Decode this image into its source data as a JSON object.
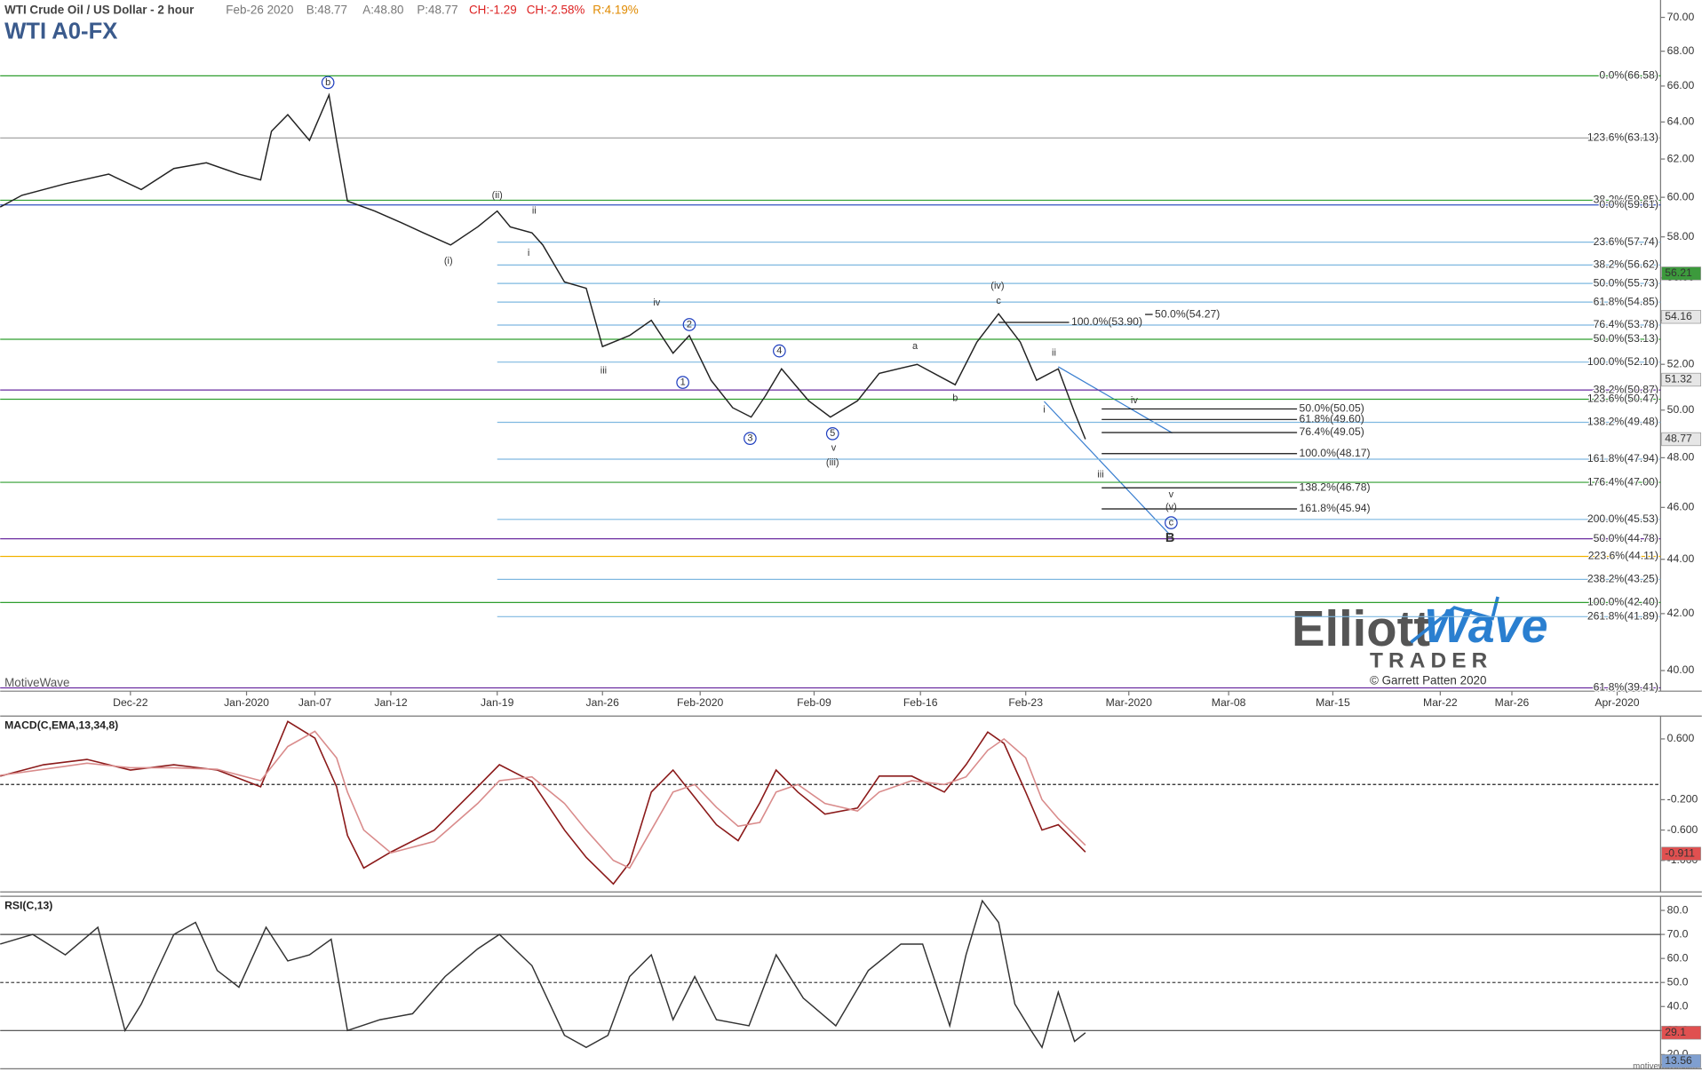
{
  "chart_data": [
    {
      "type": "line",
      "title": "WTI A0-FX",
      "subtitle": "WTI Crude Oil / US Dollar - 2 hour",
      "quote": [
        "Feb-26 2020",
        "B:48.77",
        "A:48.80",
        "P:48.77",
        "CH:-1.29",
        "CH:-2.58%",
        "R:4.19%"
      ],
      "watermark": "MotiveWave",
      "log_scale": true,
      "color": "#222222",
      "xlim": [
        0,
        153
      ],
      "ylim": [
        39.3,
        71.05
      ],
      "yticks": [
        {
          "value": 40,
          "label": "40.00"
        },
        {
          "value": 42,
          "label": "42.00"
        },
        {
          "value": 44,
          "label": "44.00"
        },
        {
          "value": 46,
          "label": "46.00"
        },
        {
          "value": 48,
          "label": "48.00"
        },
        {
          "value": 50,
          "label": "50.00"
        },
        {
          "value": 52,
          "label": "52.00"
        },
        {
          "value": 54,
          "label": "54.00"
        },
        {
          "value": 56,
          "label": "56.00"
        },
        {
          "value": 58,
          "label": "58.00"
        },
        {
          "value": 60,
          "label": "60.00"
        },
        {
          "value": 62,
          "label": "62.00"
        },
        {
          "value": 64,
          "label": "64.00"
        },
        {
          "value": 66,
          "label": "66.00"
        },
        {
          "value": 68,
          "label": "68.00"
        },
        {
          "value": 70,
          "label": "70.00"
        }
      ],
      "xticks": [
        {
          "value": 12,
          "label": "Dec-22"
        },
        {
          "value": 22.7,
          "label": "Jan-2020"
        },
        {
          "value": 29,
          "label": "Jan-07"
        },
        {
          "value": 36,
          "label": "Jan-12"
        },
        {
          "value": 45.8,
          "label": "Jan-19"
        },
        {
          "value": 55.5,
          "label": "Jan-26"
        },
        {
          "value": 64.5,
          "label": "Feb-2020"
        },
        {
          "value": 75,
          "label": "Feb-09"
        },
        {
          "value": 84.8,
          "label": "Feb-16"
        },
        {
          "value": 94.5,
          "label": "Feb-23"
        },
        {
          "value": 104,
          "label": "Mar-2020"
        },
        {
          "value": 113.2,
          "label": "Mar-08"
        },
        {
          "value": 122.8,
          "label": "Mar-15"
        },
        {
          "value": 132.7,
          "label": "Mar-22"
        },
        {
          "value": 139.3,
          "label": "Mar-26"
        },
        {
          "value": 149,
          "label": "Apr-2020"
        }
      ],
      "x": [
        0,
        2,
        6,
        10,
        13,
        16,
        19,
        22,
        24,
        25,
        26.5,
        28.5,
        30.3,
        31,
        32,
        34.5,
        37,
        39,
        41.5,
        44,
        45.8,
        47,
        49,
        50,
        52,
        54,
        55.5,
        58,
        60,
        62,
        63.5,
        65.5,
        67.5,
        69.2,
        70.5,
        72,
        74.5,
        76.5,
        79,
        81,
        84.5,
        88,
        90,
        92,
        94,
        95.5,
        97.5,
        99,
        100
      ],
      "values": [
        59.5,
        60.1,
        60.7,
        61.2,
        60.4,
        61.5,
        61.8,
        61.2,
        60.9,
        63.5,
        64.4,
        63.0,
        65.5,
        63.0,
        59.8,
        59.3,
        58.7,
        58.2,
        57.6,
        58.5,
        59.3,
        58.5,
        58.2,
        57.6,
        55.8,
        55.5,
        52.8,
        53.3,
        54.0,
        52.5,
        53.3,
        51.3,
        50.1,
        49.7,
        50.6,
        51.8,
        50.4,
        49.7,
        50.4,
        51.6,
        52.0,
        51.1,
        53.0,
        54.3,
        53.0,
        51.3,
        51.8,
        49.9,
        48.77
      ],
      "levels": [
        {
          "label": "0.0%(66.58)",
          "value": 66.58,
          "color": "#2f9e2f"
        },
        {
          "label": "123.6%(63.13)",
          "value": 63.13,
          "color": "#9a9a9a"
        },
        {
          "label": "38.2%(59.85)",
          "value": 59.85,
          "color": "#2f9e2f"
        },
        {
          "label": "0.0%(59.61)",
          "value": 59.61,
          "color": "#3050c0"
        },
        {
          "label": "23.6%(57.74)",
          "value": 57.74,
          "color": "#7fb8e0"
        },
        {
          "label": "38.2%(56.62)",
          "value": 56.62,
          "color": "#7fb8e0"
        },
        {
          "label": "50.0%(55.73)",
          "value": 55.73,
          "color": "#7fb8e0"
        },
        {
          "label": "61.8%(54.85)",
          "value": 54.85,
          "color": "#7fb8e0"
        },
        {
          "label": "76.4%(53.78)",
          "value": 53.78,
          "color": "#7fb8e0"
        },
        {
          "label": "50.0%(53.13)",
          "value": 53.13,
          "color": "#2f9e2f"
        },
        {
          "label": "100.0%(52.10)",
          "value": 52.1,
          "color": "#7fb8e0"
        },
        {
          "label": "38.2%(50.87)",
          "value": 50.87,
          "color": "#6a2ca0"
        },
        {
          "label": "123.6%(50.47)",
          "value": 50.47,
          "color": "#2f9e2f"
        },
        {
          "label": "138.2%(49.48)",
          "value": 49.48,
          "color": "#7fb8e0"
        },
        {
          "label": "161.8%(47.94)",
          "value": 47.94,
          "color": "#7fb8e0"
        },
        {
          "label": "176.4%(47.00)",
          "value": 47,
          "color": "#2f9e2f"
        },
        {
          "label": "200.0%(45.53)",
          "value": 45.53,
          "color": "#7fb8e0"
        },
        {
          "label": "50.0%(44.78)",
          "value": 44.78,
          "color": "#6a2ca0"
        },
        {
          "label": "223.6%(44.11)",
          "value": 44.11,
          "color": "#f2b200"
        },
        {
          "label": "238.2%(43.25)",
          "value": 43.25,
          "color": "#7fb8e0"
        },
        {
          "label": "100.0%(42.40)",
          "value": 42.4,
          "color": "#2f9e2f"
        },
        {
          "label": "261.8%(41.89)",
          "value": 41.89,
          "color": "#7fb8e0"
        },
        {
          "label": "61.8%(39.41)",
          "value": 39.41,
          "color": "#6a2ca0"
        }
      ],
      "inner_levels": [
        {
          "label": "100.0%(53.90)",
          "value": 53.9,
          "x": 92,
          "x2": 98.5
        },
        {
          "label": "50.0%(54.27)",
          "value": 54.27,
          "x": 105.5,
          "x2": 106.2
        },
        {
          "label": "50.0%(50.05)",
          "value": 50.05,
          "x": 101.5,
          "x2": 119.5
        },
        {
          "label": "61.8%(49.60)",
          "value": 49.6,
          "x": 101.5,
          "x2": 119.5
        },
        {
          "label": "76.4%(49.05)",
          "value": 49.05,
          "x": 101.5,
          "x2": 119.5
        },
        {
          "label": "100.0%(48.17)",
          "value": 48.17,
          "x": 101.5,
          "x2": 119.5
        },
        {
          "label": "138.2%(46.78)",
          "value": 46.78,
          "x": 101.5,
          "x2": 119.5
        },
        {
          "label": "161.8%(45.94)",
          "value": 45.94,
          "x": 101.5,
          "x2": 119.5
        }
      ],
      "last_labels": [
        56.21,
        54.16,
        51.32,
        48.77
      ],
      "last_label_colors": [
        "#3c9a3c",
        "#e6e6e6",
        "#e6e6e6",
        "#e6e6e6"
      ],
      "waves": [
        {
          "label": "b",
          "x": 30.2,
          "y": 66.2,
          "circle": true
        },
        {
          "label": "(ii)",
          "x": 45.8,
          "y": 60.1
        },
        {
          "label": "ii",
          "x": 49.2,
          "y": 59.3
        },
        {
          "label": "(i)",
          "x": 41.3,
          "y": 56.8
        },
        {
          "label": "i",
          "x": 48.7,
          "y": 57.2
        },
        {
          "label": "iv",
          "x": 60.5,
          "y": 54.8
        },
        {
          "label": "2",
          "x": 63.5,
          "y": 53.8,
          "circle": true
        },
        {
          "label": "iii",
          "x": 55.6,
          "y": 51.7
        },
        {
          "label": "1",
          "x": 62.9,
          "y": 51.2,
          "circle": true
        },
        {
          "label": "4",
          "x": 71.8,
          "y": 52.6,
          "circle": true
        },
        {
          "label": "3",
          "x": 69.1,
          "y": 48.8,
          "circle": true
        },
        {
          "label": "5",
          "x": 76.7,
          "y": 49.0,
          "circle": true
        },
        {
          "label": "v",
          "x": 76.8,
          "y": 48.4
        },
        {
          "label": "(iii)",
          "x": 76.7,
          "y": 47.8
        },
        {
          "label": "a",
          "x": 84.3,
          "y": 52.8
        },
        {
          "label": "b",
          "x": 88.0,
          "y": 50.5
        },
        {
          "label": "(iv)",
          "x": 91.9,
          "y": 55.6
        },
        {
          "label": "c",
          "x": 92.0,
          "y": 54.9
        },
        {
          "label": "ii",
          "x": 97.1,
          "y": 52.5
        },
        {
          "label": "i",
          "x": 96.2,
          "y": 50.0
        },
        {
          "label": "iv",
          "x": 104.5,
          "y": 50.4
        },
        {
          "label": "iii",
          "x": 101.4,
          "y": 47.3
        },
        {
          "label": "v",
          "x": 107.9,
          "y": 46.5
        },
        {
          "label": "(v)",
          "x": 107.9,
          "y": 46.0
        },
        {
          "label": "c",
          "x": 107.9,
          "y": 45.4,
          "circle": true
        },
        {
          "label": "B",
          "x": 107.8,
          "y": 44.8,
          "bold": true
        }
      ]
    },
    {
      "type": "line",
      "title": "MACD(C,EMA,13,34,8)",
      "xlim": [
        0,
        153
      ],
      "ylim": [
        -1.414,
        0.9
      ],
      "zero_line": true,
      "yticks": [
        {
          "value": 0.6,
          "label": "0.600"
        },
        {
          "value": -0.2,
          "label": "-0.200"
        },
        {
          "value": -0.6,
          "label": "-0.600"
        },
        {
          "value": -1,
          "label": "-1.000"
        }
      ],
      "x": [
        0,
        4,
        8,
        12,
        16,
        20,
        24,
        26.5,
        29,
        31,
        32,
        33.5,
        36,
        40,
        44,
        46,
        49,
        52,
        54,
        56.5,
        58,
        60,
        62,
        64,
        66,
        68,
        70,
        71.5,
        73.5,
        76,
        79,
        81,
        84,
        87,
        89,
        91,
        92.5,
        94.5,
        96,
        97.5,
        100
      ],
      "series": [
        {
          "color": "#8b1a1a",
          "values": [
            0.11,
            0.26,
            0.33,
            0.19,
            0.26,
            0.19,
            -0.03,
            0.83,
            0.61,
            -0.03,
            -0.67,
            -1.1,
            -0.89,
            -0.6,
            -0.03,
            0.26,
            0.04,
            -0.6,
            -0.96,
            -1.31,
            -1.03,
            -0.1,
            0.19,
            -0.17,
            -0.53,
            -0.74,
            -0.24,
            0.19,
            -0.1,
            -0.39,
            -0.31,
            0.11,
            0.11,
            -0.1,
            0.26,
            0.69,
            0.54,
            -0.1,
            -0.6,
            -0.53,
            -0.89
          ]
        },
        {
          "color": "#d98b8b",
          "values": [
            0.12,
            0.2,
            0.28,
            0.22,
            0.22,
            0.2,
            0.05,
            0.5,
            0.7,
            0.35,
            -0.1,
            -0.6,
            -0.9,
            -0.75,
            -0.25,
            0.05,
            0.1,
            -0.25,
            -0.6,
            -1.0,
            -1.1,
            -0.6,
            -0.1,
            0,
            -0.3,
            -0.55,
            -0.5,
            -0.1,
            0,
            -0.25,
            -0.35,
            -0.1,
            0.05,
            0,
            0.1,
            0.45,
            0.6,
            0.35,
            -0.2,
            -0.45,
            -0.8
          ]
        }
      ],
      "last_labels": [
        -0.911
      ],
      "last_label_colors": [
        "#e05050"
      ]
    },
    {
      "type": "line",
      "title": "RSI(C,13)",
      "xlim": [
        0,
        153
      ],
      "ylim": [
        14.1,
        85.9
      ],
      "color": "#333333",
      "yticks": [
        {
          "value": 20,
          "label": "20.0"
        },
        {
          "value": 30,
          "label": "30.0"
        },
        {
          "value": 40,
          "label": "40.0"
        },
        {
          "value": 50,
          "label": "50.0"
        },
        {
          "value": 60,
          "label": "60.0"
        },
        {
          "value": 70,
          "label": "70.0"
        },
        {
          "value": 80,
          "label": "80.0"
        }
      ],
      "reference_lines": [
        {
          "value": 70
        },
        {
          "value": 50,
          "dashed": true
        },
        {
          "value": 30
        }
      ],
      "x": [
        0,
        3,
        6,
        9,
        11.5,
        13,
        16,
        18,
        20,
        22,
        24.5,
        26.5,
        28.5,
        30.5,
        32,
        35,
        38,
        41,
        44,
        46,
        49,
        52,
        54,
        56,
        58,
        60,
        62,
        64,
        66,
        69,
        71.5,
        74,
        77,
        80,
        83,
        85,
        87.5,
        89,
        90.5,
        92,
        93.5,
        95,
        96,
        97.5,
        99,
        100
      ],
      "values": [
        66,
        70,
        61.5,
        73,
        30,
        41,
        70,
        75,
        55,
        48,
        73,
        59,
        61.5,
        68,
        30,
        34.5,
        37,
        52.5,
        64,
        70,
        57,
        28,
        23,
        28,
        52.5,
        61.5,
        34.5,
        52.5,
        34.5,
        32,
        61.5,
        43.5,
        32,
        55,
        66,
        66,
        32,
        61.5,
        84,
        75,
        41,
        30,
        23,
        46,
        25.5,
        29.1
      ],
      "last_labels": [
        29.1,
        13.56
      ],
      "last_label_colors": [
        "#e05050",
        "#7f9fd0"
      ]
    }
  ],
  "logo": {
    "elliott": "Elliott",
    "wave": "Wave",
    "trader": "TRADER",
    "copyright": "© Garrett Patten 2020"
  },
  "footer": "motivewave.com"
}
